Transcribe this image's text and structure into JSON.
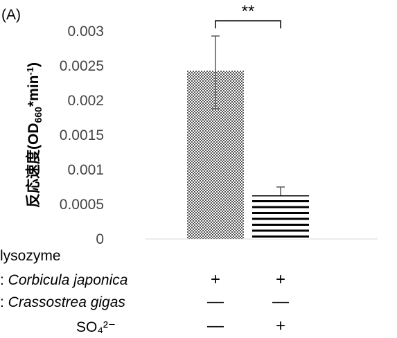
{
  "chart_data": {
    "type": "bar",
    "panel_label": "(A)",
    "ylabel_main": "反応速度(OD",
    "ylabel_sub": "660",
    "ylabel_mid": "*min",
    "ylabel_sup": "-1",
    "ylabel_end": ")",
    "ylim": [
      0,
      0.003
    ],
    "yticks": [
      "0.003",
      "0.0025",
      "0.002",
      "0.0015",
      "0.001",
      "0.0005",
      "0"
    ],
    "ytick_values": [
      0.003,
      0.0025,
      0.002,
      0.0015,
      0.001,
      0.0005,
      0
    ],
    "grid": false,
    "bars": [
      {
        "value": 0.00243,
        "err_high": 0.00293,
        "err_low": 0.00188,
        "pattern": "checker"
      },
      {
        "value": 0.00063,
        "err_high": 0.00075,
        "err_low": 0.00063,
        "pattern": "stripes"
      }
    ],
    "significance": "**"
  },
  "conditions": {
    "header": "lysozyme",
    "rows": [
      {
        "prefix": ": ",
        "label": "Corbicula japonica",
        "italic": true,
        "values": [
          "+",
          "+"
        ]
      },
      {
        "prefix": ": ",
        "label": "Crassostrea gigas",
        "italic": true,
        "values": [
          "—",
          "—"
        ]
      },
      {
        "prefix": "",
        "label": "SO₄²⁻",
        "italic": false,
        "values": [
          "—",
          "+"
        ]
      }
    ]
  }
}
